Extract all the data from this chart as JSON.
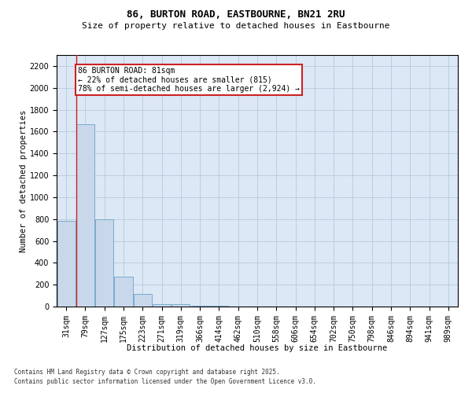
{
  "title1": "86, BURTON ROAD, EASTBOURNE, BN21 2RU",
  "title2": "Size of property relative to detached houses in Eastbourne",
  "xlabel": "Distribution of detached houses by size in Eastbourne",
  "ylabel": "Number of detached properties",
  "categories": [
    "31sqm",
    "79sqm",
    "127sqm",
    "175sqm",
    "223sqm",
    "271sqm",
    "319sqm",
    "366sqm",
    "414sqm",
    "462sqm",
    "510sqm",
    "558sqm",
    "606sqm",
    "654sqm",
    "702sqm",
    "750sqm",
    "798sqm",
    "846sqm",
    "894sqm",
    "941sqm",
    "989sqm"
  ],
  "values": [
    780,
    1670,
    800,
    270,
    115,
    25,
    20,
    10,
    5,
    2,
    0,
    2,
    0,
    0,
    0,
    0,
    0,
    0,
    0,
    0,
    0
  ],
  "bar_color": "#c8d8ea",
  "bar_edge_color": "#7aaace",
  "ylim": [
    0,
    2300
  ],
  "yticks": [
    0,
    200,
    400,
    600,
    800,
    1000,
    1200,
    1400,
    1600,
    1800,
    2000,
    2200
  ],
  "grid_color": "#b0c4d8",
  "background_color": "#dce8f5",
  "annotation_text_line1": "86 BURTON ROAD: 81sqm",
  "annotation_text_line2": "← 22% of detached houses are smaller (815)",
  "annotation_text_line3": "78% of semi-detached houses are larger (2,924) →",
  "red_line_color": "#cc2222",
  "annotation_box_edge_color": "#cc2222",
  "footer1": "Contains HM Land Registry data © Crown copyright and database right 2025.",
  "footer2": "Contains public sector information licensed under the Open Government Licence v3.0.",
  "title1_fontsize": 9,
  "title2_fontsize": 8,
  "axis_label_fontsize": 7.5,
  "tick_fontsize": 7,
  "annotation_fontsize": 7
}
